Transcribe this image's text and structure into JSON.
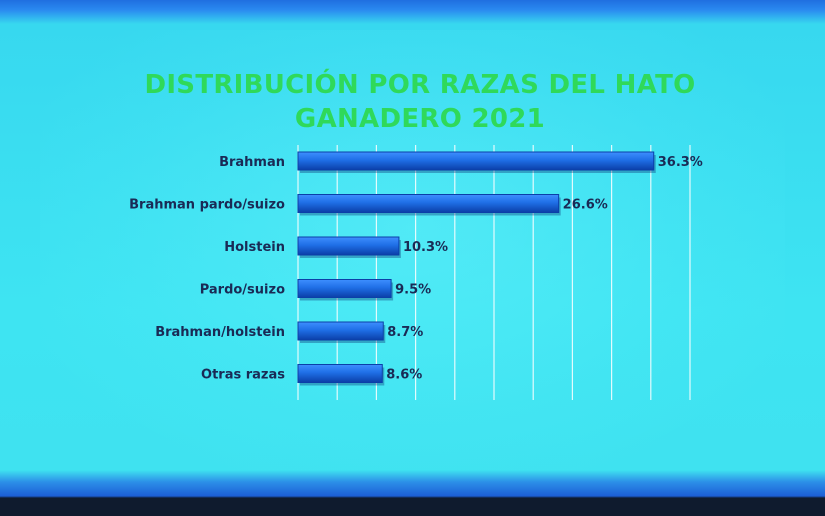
{
  "chart_data": {
    "type": "bar",
    "orientation": "horizontal",
    "title_lines": [
      "DISTRIBUCIÓN POR RAZAS DEL HATO",
      "GANADERO 2021"
    ],
    "categories": [
      "Brahman",
      "Brahman pardo/suizo",
      "Holstein",
      "Pardo/suizo",
      "Brahman/holstein",
      "Otras razas"
    ],
    "values": [
      36.3,
      26.6,
      10.3,
      9.5,
      8.7,
      8.6
    ],
    "value_labels": [
      "36.3%",
      "26.6%",
      "10.3%",
      "9.5%",
      "8.7%",
      "8.6%"
    ],
    "xlim": [
      0,
      40
    ],
    "grid": true,
    "colors": {
      "bar": "#1f6fe6",
      "bar_light": "#3e8fff",
      "bar_dark": "#0b3fa8",
      "title": "#2fd95a",
      "label": "#1a2a55"
    }
  }
}
